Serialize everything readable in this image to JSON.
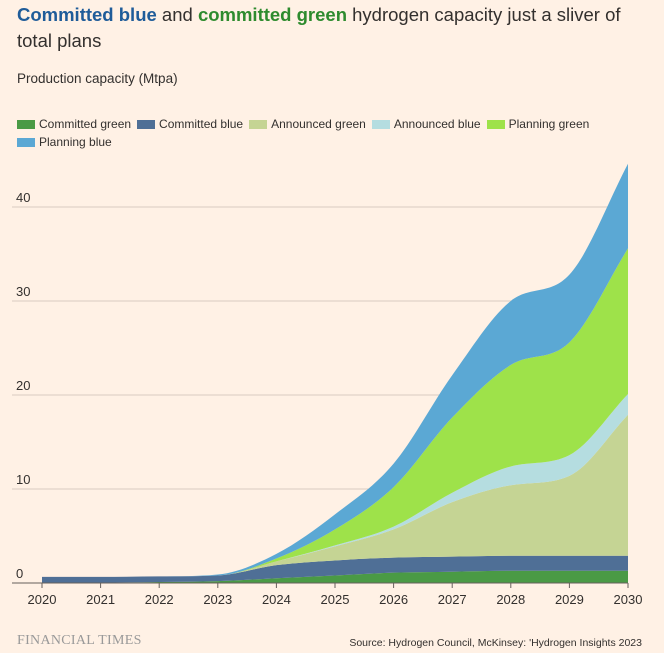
{
  "title_parts": {
    "committed_blue": "Committed blue",
    "and": " and ",
    "committed_green": "committed green",
    "rest": " hydrogen capacity just a sliver of total plans"
  },
  "subtitle": "Production capacity (Mtpa)",
  "footer": {
    "brand": "FINANCIAL TIMES",
    "source": "Source: Hydrogen Council, McKinsey: 'Hydrogen Insights 2023"
  },
  "chart_data": {
    "type": "area",
    "stacked": true,
    "x": [
      2020,
      2021,
      2022,
      2023,
      2024,
      2025,
      2026,
      2027,
      2028,
      2029,
      2030
    ],
    "x_tick_labels": [
      "2020",
      "2021",
      "2022",
      "2023",
      "2024",
      "2025",
      "2026",
      "2027",
      "2028",
      "2029",
      "2030"
    ],
    "y_ticks": [
      0,
      10,
      20,
      30,
      40
    ],
    "ylim": [
      0,
      45
    ],
    "grid": true,
    "legend_position": "top-left",
    "series": [
      {
        "name": "Committed green",
        "color": "#4a9a45",
        "values": [
          0.05,
          0.05,
          0.1,
          0.2,
          0.5,
          0.8,
          1.1,
          1.2,
          1.3,
          1.3,
          1.3
        ]
      },
      {
        "name": "Committed blue",
        "color": "#4f6f96",
        "values": [
          0.6,
          0.6,
          0.6,
          0.6,
          1.4,
          1.6,
          1.6,
          1.6,
          1.6,
          1.6,
          1.6
        ]
      },
      {
        "name": "Announced green",
        "color": "#c5d494",
        "values": [
          0,
          0,
          0,
          0,
          0.4,
          1.5,
          3.0,
          5.8,
          7.5,
          8.5,
          15.0
        ]
      },
      {
        "name": "Announced blue",
        "color": "#b5dde0",
        "values": [
          0,
          0,
          0,
          0,
          0,
          0.1,
          0.3,
          1.0,
          2.0,
          2.2,
          2.2
        ]
      },
      {
        "name": "Planning green",
        "color": "#9ee24a",
        "values": [
          0,
          0,
          0,
          0,
          0.3,
          1.7,
          4.2,
          8.0,
          10.8,
          12.0,
          15.5
        ]
      },
      {
        "name": "Planning blue",
        "color": "#5ba8d4",
        "values": [
          0,
          0,
          0,
          0.1,
          0.5,
          1.6,
          2.5,
          4.5,
          6.8,
          7.2,
          9.0
        ]
      }
    ]
  }
}
